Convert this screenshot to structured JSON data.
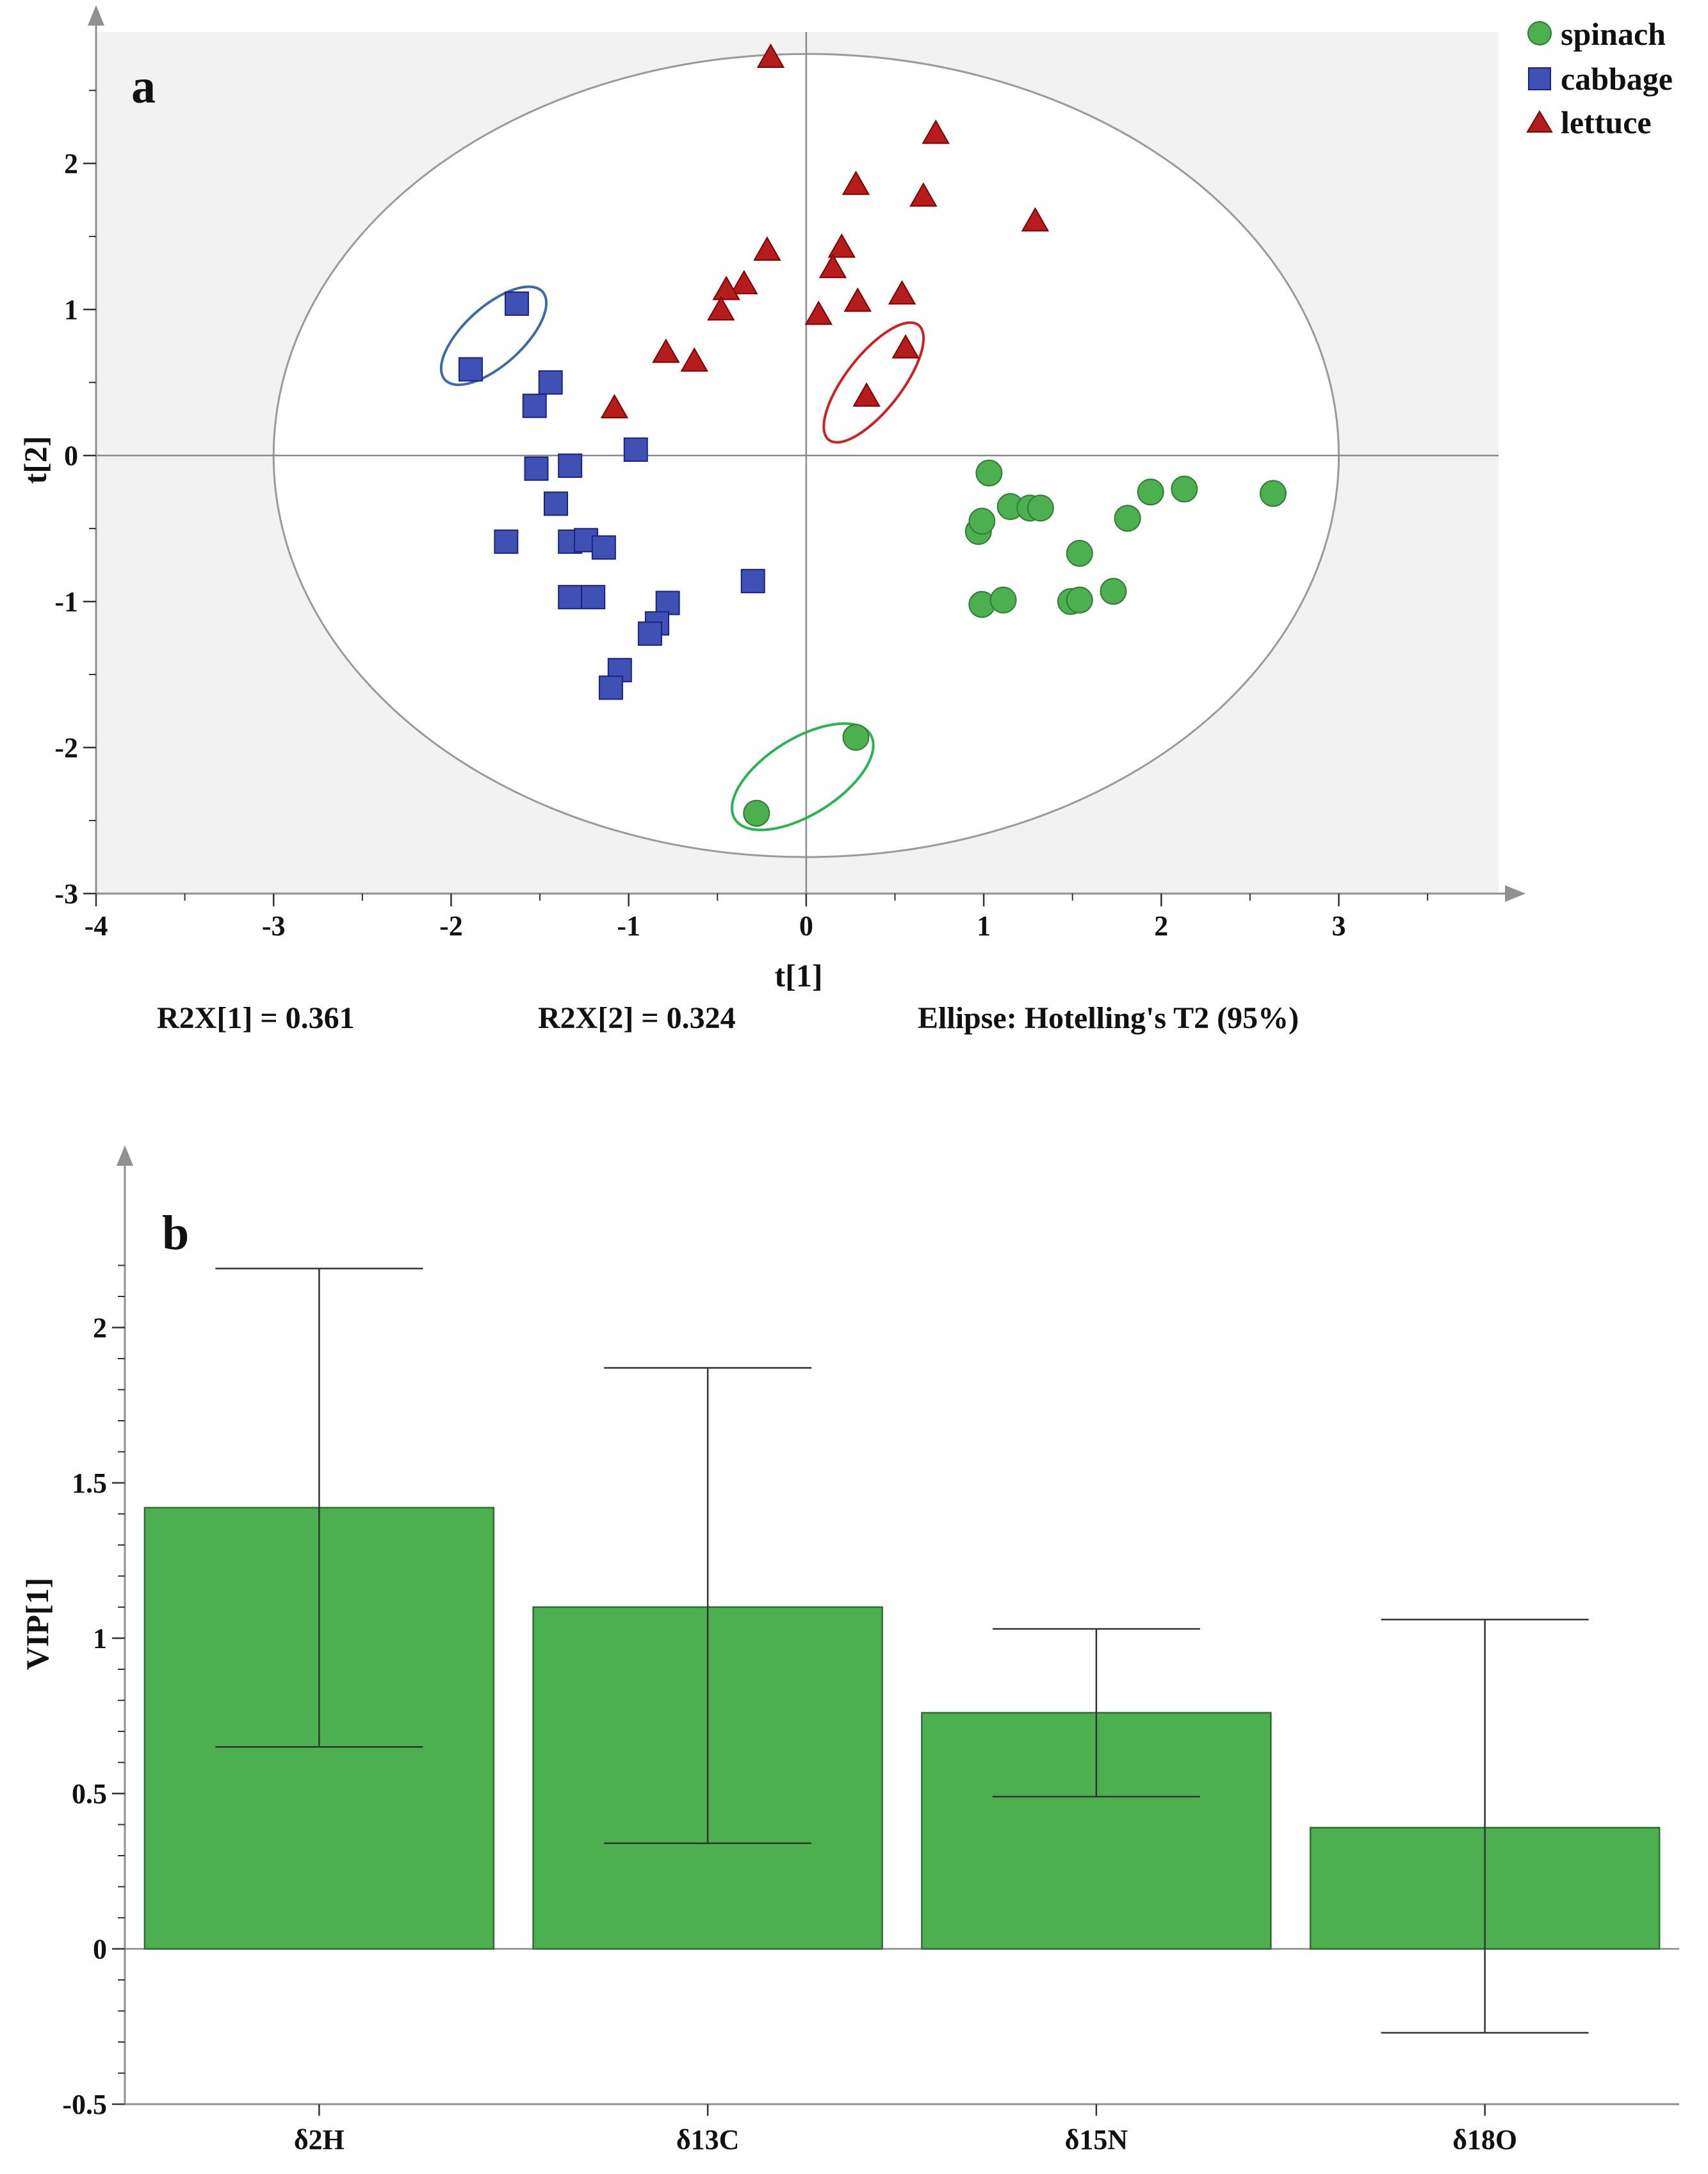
{
  "chart_data": [
    {
      "panel": "a",
      "type": "scatter",
      "xlabel": "t[1]",
      "ylabel": "t[2]",
      "xlim": [
        -4,
        3.9
      ],
      "ylim": [
        -3,
        2.9
      ],
      "xticks": [
        -4,
        -3,
        -2,
        -1,
        0,
        1,
        2,
        3
      ],
      "yticks": [
        -3,
        -2,
        -1,
        0,
        1,
        2
      ],
      "grid": false,
      "legend_position": "top-right",
      "hotelling_ellipse": {
        "cx": 0,
        "cy": 0,
        "rx": 3,
        "ry": 2.75
      },
      "series": [
        {
          "name": "spinach",
          "marker": "circle",
          "color": "#4CAF50",
          "points": [
            [
              1.03,
              -0.12
            ],
            [
              0.97,
              -0.52
            ],
            [
              0.99,
              -0.45
            ],
            [
              1.15,
              -0.35
            ],
            [
              1.26,
              -0.36
            ],
            [
              1.32,
              -0.36
            ],
            [
              1.54,
              -0.67
            ],
            [
              1.81,
              -0.43
            ],
            [
              1.94,
              -0.25
            ],
            [
              2.13,
              -0.23
            ],
            [
              2.63,
              -0.26
            ],
            [
              0.99,
              -1.02
            ],
            [
              1.11,
              -0.99
            ],
            [
              1.49,
              -1.0
            ],
            [
              1.54,
              -0.99
            ],
            [
              1.73,
              -0.93
            ],
            [
              0.28,
              -1.93
            ],
            [
              -0.28,
              -2.45
            ]
          ]
        },
        {
          "name": "cabbage",
          "marker": "square",
          "color": "#3F51B5",
          "points": [
            [
              -1.63,
              1.04
            ],
            [
              -1.89,
              0.59
            ],
            [
              -1.44,
              0.5
            ],
            [
              -1.53,
              0.34
            ],
            [
              -0.96,
              0.04
            ],
            [
              -1.52,
              -0.09
            ],
            [
              -1.33,
              -0.07
            ],
            [
              -1.41,
              -0.33
            ],
            [
              -1.69,
              -0.59
            ],
            [
              -1.33,
              -0.59
            ],
            [
              -1.24,
              -0.58
            ],
            [
              -1.14,
              -0.63
            ],
            [
              -1.33,
              -0.97
            ],
            [
              -1.2,
              -0.97
            ],
            [
              -0.78,
              -1.01
            ],
            [
              -0.3,
              -0.86
            ],
            [
              -0.84,
              -1.15
            ],
            [
              -0.88,
              -1.22
            ],
            [
              -1.05,
              -1.47
            ],
            [
              -1.1,
              -1.59
            ]
          ]
        },
        {
          "name": "lettuce",
          "marker": "triangle",
          "color": "#B71C1C",
          "points": [
            [
              -0.2,
              2.72
            ],
            [
              0.73,
              2.2
            ],
            [
              0.28,
              1.85
            ],
            [
              0.66,
              1.77
            ],
            [
              1.29,
              1.6
            ],
            [
              -0.22,
              1.4
            ],
            [
              0.2,
              1.42
            ],
            [
              0.15,
              1.28
            ],
            [
              -0.35,
              1.17
            ],
            [
              -0.45,
              1.13
            ],
            [
              -0.48,
              0.99
            ],
            [
              0.07,
              0.96
            ],
            [
              0.29,
              1.05
            ],
            [
              0.54,
              1.1
            ],
            [
              -0.79,
              0.7
            ],
            [
              -0.63,
              0.64
            ],
            [
              -1.08,
              0.32
            ],
            [
              0.56,
              0.73
            ],
            [
              0.34,
              0.4
            ]
          ]
        }
      ],
      "group_ellipses": [
        {
          "group": "cabbage",
          "color": "#3F6AA8",
          "cx": -1.76,
          "cy": 0.82,
          "rx": 0.37,
          "ry": 0.2,
          "angle_deg": -42
        },
        {
          "group": "lettuce",
          "color": "#D02020",
          "cx": 0.38,
          "cy": 0.5,
          "rx": 0.41,
          "ry": 0.19,
          "angle_deg": -52
        },
        {
          "group": "spinach",
          "color": "#27B552",
          "cx": -0.02,
          "cy": -2.2,
          "rx": 0.45,
          "ry": 0.26,
          "angle_deg": -32
        }
      ],
      "footer": {
        "r2x1": "R2X[1] = 0.361",
        "r2x2": "R2X[2] = 0.324",
        "ellipse_note": "Ellipse: Hotelling's T2 (95%)"
      }
    },
    {
      "panel": "b",
      "type": "bar",
      "ylabel": "VIP[1]",
      "xlabel": "",
      "categories": [
        "δ2H",
        "δ13C",
        "δ15N",
        "δ18O"
      ],
      "values": [
        1.42,
        1.1,
        0.76,
        0.39
      ],
      "error_low": [
        0.65,
        0.34,
        0.49,
        -0.27
      ],
      "error_high": [
        2.19,
        1.87,
        1.03,
        1.06
      ],
      "ylim": [
        -0.5,
        2.5
      ],
      "yticks": [
        -0.5,
        0,
        0.5,
        1,
        1.5,
        2
      ],
      "yticklabels": [
        "-0.5",
        "0",
        "0.5",
        "1",
        "1.5",
        "2"
      ],
      "color": "#4CAF50",
      "grid": false
    }
  ]
}
